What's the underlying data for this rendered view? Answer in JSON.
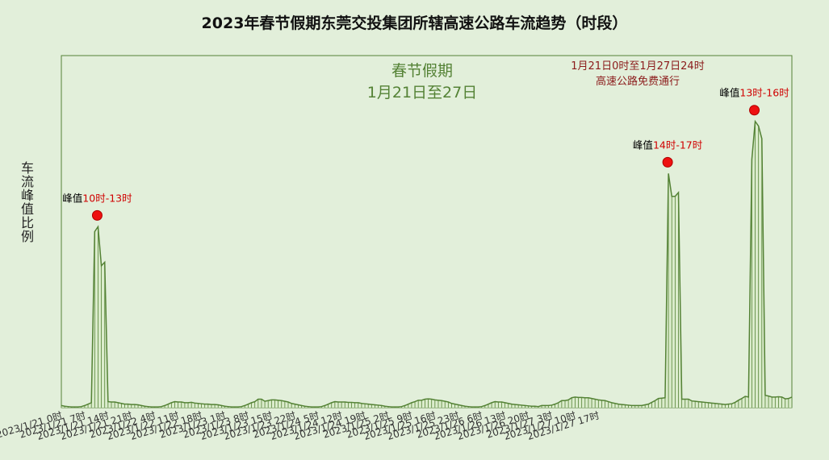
{
  "chart_data": {
    "type": "area",
    "title": "2023年春节假期东莞交投集团所辖高速公路车流趋势（时段）",
    "ylabel": "车流峰值比例",
    "ylim": [
      0,
      1
    ],
    "grid": false,
    "annotations": {
      "holiday_line1": "春节假期",
      "holiday_line2": "1月21日至27日",
      "free_line1": "1月21日0时至1月27日24时",
      "free_line2": "高速公路免费通行"
    },
    "peaks": [
      {
        "prefix": "峰值",
        "label": "10时-13时"
      },
      {
        "prefix": "峰值",
        "label": "14时-17时"
      },
      {
        "prefix": "峰值",
        "label": "13时-16时"
      }
    ],
    "tick_labels": [
      "2023/1/21 0时",
      "2023/1/21 7时",
      "2023/1/21 14时",
      "2023/1/21 21时",
      "2023/1/22 4时",
      "2023/1/22 11时",
      "2023/1/22 18时",
      "2023/1/23 1时",
      "2023/1/23 8时",
      "2023/1/23 15时",
      "2023/1/23 22时",
      "2023/1/24 5时",
      "2023/1/24 12时",
      "2023/1/24 19时",
      "2023/1/25 2时",
      "2023/1/25 9时",
      "2023/1/25 16时",
      "2023/1/25 23时",
      "2023/1/26 6时",
      "2023/1/26 13时",
      "2023/1/26 20时",
      "2023/1/27 3时",
      "2023/1/27 10时",
      "2023/1/27 17时"
    ],
    "series": [
      {
        "color": "#548235",
        "values": [
          0.006,
          0.004,
          0.003,
          0.002,
          0.002,
          0.002,
          0.003,
          0.006,
          0.01,
          0.014,
          0.5,
          0.514,
          0.403,
          0.413,
          0.017,
          0.016,
          0.016,
          0.014,
          0.012,
          0.01,
          0.01,
          0.009,
          0.009,
          0.008,
          0.006,
          0.004,
          0.003,
          0.002,
          0.002,
          0.002,
          0.003,
          0.006,
          0.01,
          0.014,
          0.017,
          0.016,
          0.016,
          0.014,
          0.014,
          0.015,
          0.013,
          0.012,
          0.011,
          0.01,
          0.01,
          0.009,
          0.009,
          0.008,
          0.006,
          0.004,
          0.003,
          0.002,
          0.002,
          0.002,
          0.003,
          0.006,
          0.01,
          0.014,
          0.017,
          0.024,
          0.024,
          0.018,
          0.02,
          0.022,
          0.022,
          0.021,
          0.02,
          0.018,
          0.016,
          0.012,
          0.01,
          0.008,
          0.006,
          0.004,
          0.003,
          0.002,
          0.002,
          0.002,
          0.003,
          0.006,
          0.01,
          0.014,
          0.017,
          0.016,
          0.016,
          0.016,
          0.015,
          0.015,
          0.014,
          0.014,
          0.012,
          0.011,
          0.01,
          0.009,
          0.008,
          0.007,
          0.006,
          0.004,
          0.003,
          0.002,
          0.002,
          0.002,
          0.003,
          0.006,
          0.01,
          0.014,
          0.017,
          0.021,
          0.021,
          0.024,
          0.025,
          0.024,
          0.022,
          0.021,
          0.02,
          0.018,
          0.016,
          0.012,
          0.01,
          0.008,
          0.006,
          0.004,
          0.003,
          0.002,
          0.002,
          0.002,
          0.003,
          0.006,
          0.01,
          0.014,
          0.017,
          0.016,
          0.016,
          0.014,
          0.012,
          0.01,
          0.009,
          0.008,
          0.007,
          0.006,
          0.005,
          0.004,
          0.004,
          0.003,
          0.006,
          0.006,
          0.006,
          0.007,
          0.01,
          0.014,
          0.02,
          0.02,
          0.022,
          0.028,
          0.03,
          0.029,
          0.029,
          0.028,
          0.028,
          0.026,
          0.024,
          0.022,
          0.021,
          0.02,
          0.017,
          0.014,
          0.012,
          0.01,
          0.009,
          0.008,
          0.007,
          0.006,
          0.006,
          0.006,
          0.006,
          0.008,
          0.01,
          0.015,
          0.02,
          0.026,
          0.027,
          0.028,
          0.665,
          0.6,
          0.6,
          0.611,
          0.024,
          0.024,
          0.024,
          0.019,
          0.018,
          0.017,
          0.016,
          0.015,
          0.014,
          0.013,
          0.012,
          0.011,
          0.01,
          0.009,
          0.01,
          0.011,
          0.015,
          0.021,
          0.026,
          0.032,
          0.03,
          0.705,
          0.813,
          0.8,
          0.764,
          0.035,
          0.033,
          0.03,
          0.03,
          0.031,
          0.03,
          0.025,
          0.026,
          0.03
        ]
      }
    ]
  }
}
